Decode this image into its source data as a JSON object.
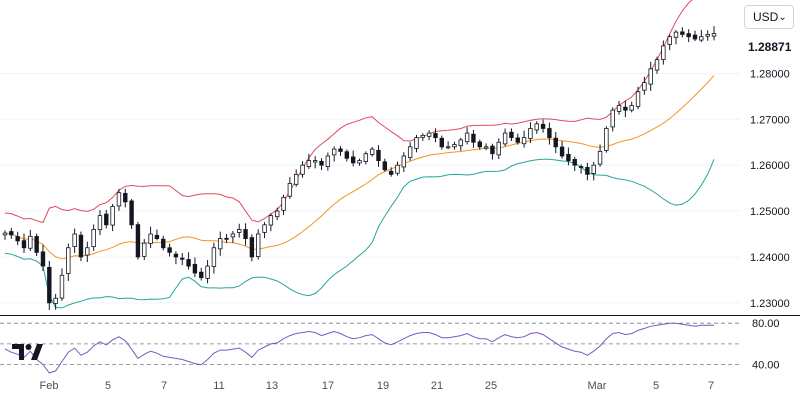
{
  "currency_selector": {
    "value": "USD"
  },
  "last_price": "1.28871",
  "colors": {
    "upper_band": "#e04a5f",
    "middle_band": "#f0961f",
    "lower_band": "#26a69a",
    "candle": "#131722",
    "rsi": "#7e57c2"
  },
  "chart_data": {
    "type": "candlestick",
    "indicators": [
      "Bollinger Bands",
      "RSI"
    ],
    "x_tick_labels": [
      "Feb",
      "5",
      "7",
      "11",
      "13",
      "17",
      "19",
      "21",
      "25",
      "Mar",
      "5",
      "7"
    ],
    "price_axis": {
      "ticks": [
        "1.23000",
        "1.24000",
        "1.25000",
        "1.26000",
        "1.27000",
        "1.28000"
      ],
      "range": [
        1.228,
        1.296
      ]
    },
    "rsi_axis": {
      "ticks": [
        "80.00",
        "40.00"
      ],
      "range": [
        30,
        85
      ]
    },
    "close_series": [
      1.2452,
      1.2448,
      1.2435,
      1.242,
      1.2445,
      1.241,
      1.238,
      1.23,
      1.231,
      1.236,
      1.242,
      1.245,
      1.24,
      1.242,
      1.246,
      1.249,
      1.247,
      1.251,
      1.254,
      1.252,
      1.247,
      1.24,
      1.243,
      1.245,
      1.244,
      1.242,
      1.241,
      1.24,
      1.2395,
      1.238,
      1.2365,
      1.2355,
      1.238,
      1.242,
      1.244,
      1.244,
      1.245,
      1.246,
      1.244,
      1.24,
      1.245,
      1.247,
      1.249,
      1.25,
      1.253,
      1.256,
      1.258,
      1.26,
      1.261,
      1.261,
      1.26,
      1.262,
      1.2635,
      1.263,
      1.2615,
      1.2605,
      1.261,
      1.2625,
      1.2635,
      1.261,
      1.259,
      1.258,
      1.26,
      1.262,
      1.264,
      1.266,
      1.2665,
      1.267,
      1.266,
      1.264,
      1.264,
      1.2645,
      1.2655,
      1.267,
      1.265,
      1.264,
      1.264,
      1.2625,
      1.265,
      1.267,
      1.266,
      1.265,
      1.266,
      1.268,
      1.269,
      1.268,
      1.266,
      1.264,
      1.262,
      1.261,
      1.26,
      1.2595,
      1.258,
      1.26,
      1.263,
      1.268,
      1.272,
      1.273,
      1.272,
      1.273,
      1.276,
      1.278,
      1.281,
      1.283,
      1.286,
      1.288,
      1.289,
      1.2885,
      1.288,
      1.2875,
      1.288,
      1.2885,
      1.2887
    ],
    "rsi_series": [
      55,
      52,
      50,
      47,
      53,
      45,
      40,
      32,
      34,
      43,
      52,
      56,
      49,
      52,
      58,
      62,
      59,
      64,
      67,
      63,
      55,
      46,
      50,
      53,
      51,
      48,
      47,
      46,
      45,
      43,
      41,
      40,
      45,
      51,
      54,
      54,
      55,
      56,
      52,
      47,
      54,
      57,
      60,
      61,
      65,
      68,
      70,
      71,
      72,
      71,
      68,
      70,
      72,
      70,
      67,
      65,
      66,
      68,
      69,
      65,
      61,
      59,
      62,
      65,
      68,
      70,
      71,
      71,
      69,
      66,
      66,
      67,
      68,
      70,
      67,
      65,
      65,
      62,
      66,
      69,
      67,
      66,
      67,
      70,
      71,
      69,
      65,
      61,
      57,
      55,
      53,
      52,
      49,
      53,
      58,
      65,
      70,
      71,
      69,
      70,
      73,
      75,
      77,
      78,
      79,
      80,
      80,
      79,
      78,
      77,
      78,
      78,
      78
    ]
  }
}
